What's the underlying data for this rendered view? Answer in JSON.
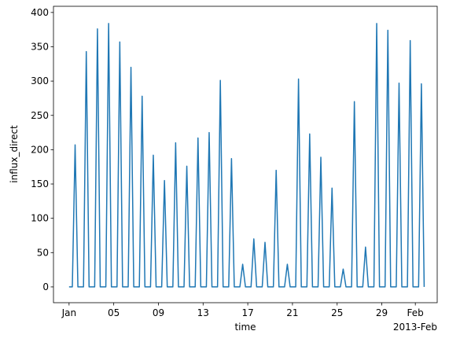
{
  "chart_data": {
    "type": "line",
    "xlabel": "time",
    "ylabel": "influx_direct",
    "x_offset_label": "2013-Feb",
    "x": [
      "2013-01-01T00:00",
      "2013-01-01T07:00",
      "2013-01-01T13:00",
      "2013-01-01T19:00",
      "2013-01-02T07:00",
      "2013-01-02T13:00",
      "2013-01-02T19:00",
      "2013-01-03T07:00",
      "2013-01-03T13:00",
      "2013-01-03T19:00",
      "2013-01-04T07:00",
      "2013-01-04T13:00",
      "2013-01-04T19:00",
      "2013-01-05T07:00",
      "2013-01-05T13:00",
      "2013-01-05T19:00",
      "2013-01-06T07:00",
      "2013-01-06T13:00",
      "2013-01-06T19:00",
      "2013-01-07T07:00",
      "2013-01-07T13:00",
      "2013-01-07T19:00",
      "2013-01-08T07:00",
      "2013-01-08T13:00",
      "2013-01-08T19:00",
      "2013-01-09T07:00",
      "2013-01-09T13:00",
      "2013-01-09T19:00",
      "2013-01-10T07:00",
      "2013-01-10T13:00",
      "2013-01-10T19:00",
      "2013-01-11T07:00",
      "2013-01-11T13:00",
      "2013-01-11T19:00",
      "2013-01-12T07:00",
      "2013-01-12T13:00",
      "2013-01-12T19:00",
      "2013-01-13T07:00",
      "2013-01-13T13:00",
      "2013-01-13T19:00",
      "2013-01-14T07:00",
      "2013-01-14T13:00",
      "2013-01-14T19:00",
      "2013-01-15T07:00",
      "2013-01-15T13:00",
      "2013-01-15T19:00",
      "2013-01-16T07:00",
      "2013-01-16T13:00",
      "2013-01-16T19:00",
      "2013-01-17T07:00",
      "2013-01-17T13:00",
      "2013-01-17T19:00",
      "2013-01-18T07:00",
      "2013-01-18T13:00",
      "2013-01-18T19:00",
      "2013-01-19T07:00",
      "2013-01-19T13:00",
      "2013-01-19T19:00",
      "2013-01-20T07:00",
      "2013-01-20T13:00",
      "2013-01-20T19:00",
      "2013-01-21T07:00",
      "2013-01-21T13:00",
      "2013-01-21T19:00",
      "2013-01-22T07:00",
      "2013-01-22T13:00",
      "2013-01-22T19:00",
      "2013-01-23T07:00",
      "2013-01-23T13:00",
      "2013-01-23T19:00",
      "2013-01-24T07:00",
      "2013-01-24T13:00",
      "2013-01-24T19:00",
      "2013-01-25T07:00",
      "2013-01-25T13:00",
      "2013-01-25T19:00",
      "2013-01-26T07:00",
      "2013-01-26T13:00",
      "2013-01-26T19:00",
      "2013-01-27T07:00",
      "2013-01-27T13:00",
      "2013-01-27T19:00",
      "2013-01-28T07:00",
      "2013-01-28T13:00",
      "2013-01-28T19:00",
      "2013-01-29T07:00",
      "2013-01-29T13:00",
      "2013-01-29T19:00",
      "2013-01-30T07:00",
      "2013-01-30T13:00",
      "2013-01-30T19:00",
      "2013-01-31T07:00",
      "2013-01-31T13:00",
      "2013-01-31T19:00",
      "2013-02-01T07:00",
      "2013-02-01T13:00",
      "2013-02-01T19:00"
    ],
    "series": [
      {
        "name": "influx_direct",
        "color": "#1f77b4",
        "values": [
          0,
          0,
          207,
          0,
          0,
          343,
          0,
          0,
          376,
          0,
          0,
          384,
          0,
          0,
          357,
          0,
          0,
          320,
          0,
          0,
          278,
          0,
          0,
          192,
          0,
          0,
          155,
          0,
          0,
          210,
          0,
          0,
          176,
          0,
          0,
          217,
          0,
          0,
          225,
          0,
          0,
          301,
          0,
          0,
          187,
          0,
          0,
          33,
          0,
          0,
          70,
          0,
          0,
          65,
          0,
          0,
          170,
          0,
          0,
          33,
          0,
          0,
          303,
          0,
          0,
          223,
          0,
          0,
          189,
          0,
          0,
          144,
          0,
          0,
          26,
          0,
          0,
          270,
          0,
          0,
          58,
          0,
          0,
          384,
          0,
          0,
          374,
          0,
          0,
          297,
          0,
          0,
          359,
          0,
          0,
          296,
          0
        ]
      }
    ],
    "xlim": [
      "2012-12-30T14:30",
      "2013-02-02T23:00"
    ],
    "xticks": [
      {
        "value": "2013-01-01",
        "label": "Jan"
      },
      {
        "value": "2013-01-05",
        "label": "05"
      },
      {
        "value": "2013-01-09",
        "label": "09"
      },
      {
        "value": "2013-01-13",
        "label": "13"
      },
      {
        "value": "2013-01-17",
        "label": "17"
      },
      {
        "value": "2013-01-21",
        "label": "21"
      },
      {
        "value": "2013-01-25",
        "label": "25"
      },
      {
        "value": "2013-01-29",
        "label": "29"
      },
      {
        "value": "2013-02-01",
        "label": "Feb"
      }
    ],
    "ylim": [
      -23,
      409
    ],
    "yticks": [
      0,
      50,
      100,
      150,
      200,
      250,
      300,
      350,
      400
    ],
    "grid": false
  }
}
